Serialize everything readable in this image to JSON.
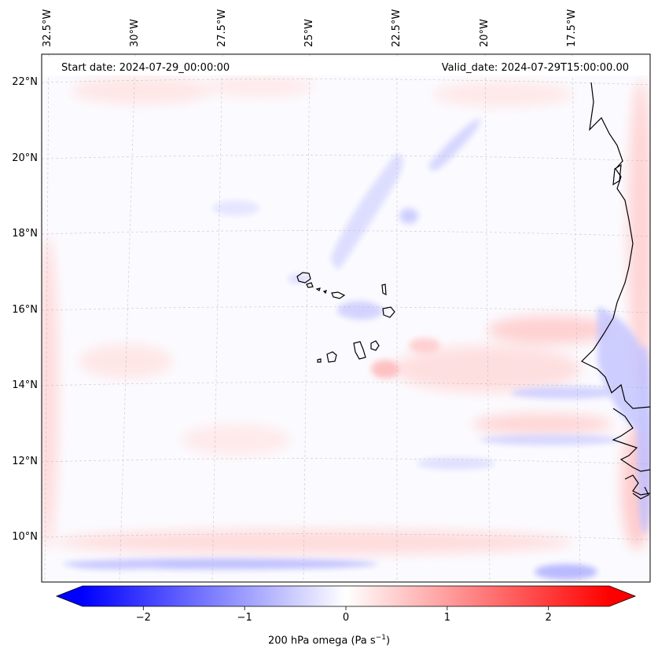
{
  "map": {
    "start_date_text": "Start date: 2024-07-29_00:00:00",
    "valid_date_text": "Valid_date: 2024-07-29T15:00:00.00",
    "lon_labels": [
      "32.5°W",
      "30°W",
      "27.5°W",
      "25°W",
      "22.5°W",
      "20°W",
      "17.5°W"
    ],
    "lat_labels": [
      "22°N",
      "20°N",
      "18°N",
      "16°N",
      "14°N",
      "12°N",
      "10°N"
    ],
    "gridlines": true,
    "coastline_color": "#000000"
  },
  "colorbar": {
    "label": "200 hPa omega (Pa s",
    "label_sup": "−1",
    "label_end": ")",
    "ticks": [
      "−2",
      "−1",
      "0",
      "1",
      "2"
    ],
    "tick_values": [
      -2,
      -1,
      0,
      1,
      2
    ],
    "range": [
      -2.6,
      2.6
    ],
    "extend": "both",
    "cmap": "bwr",
    "colors": {
      "min": "#0000ff",
      "mid": "#ffffff",
      "max": "#ff0000"
    }
  }
}
